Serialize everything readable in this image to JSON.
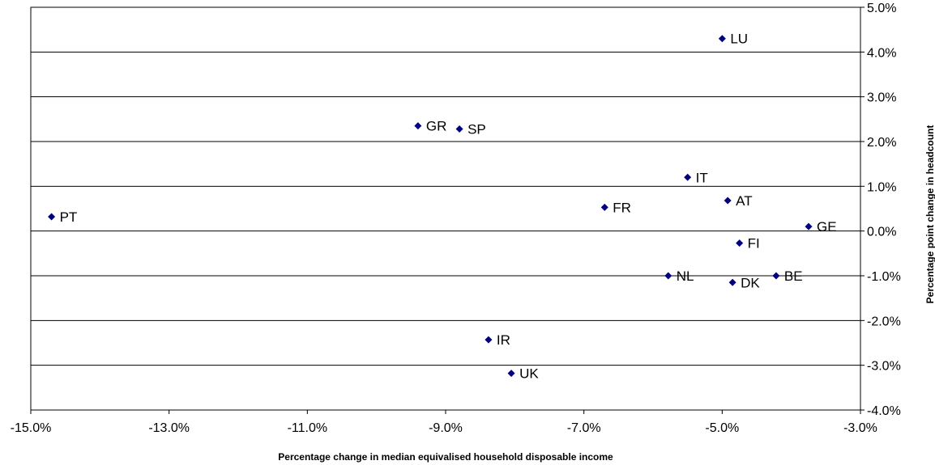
{
  "chart_data": {
    "type": "scatter",
    "title": "",
    "xlabel": "Percentage change in median equivalised household disposable income",
    "ylabel": "Percentage point change in headcount",
    "xlim": [
      -15.0,
      -3.0
    ],
    "ylim": [
      -4.0,
      5.0
    ],
    "x_ticks": [
      -15.0,
      -13.0,
      -11.0,
      -9.0,
      -7.0,
      -5.0,
      -3.0
    ],
    "x_tick_labels": [
      "-15.0%",
      "-13.0%",
      "-11.0%",
      "-9.0%",
      "-7.0%",
      "-5.0%",
      "-3.0%"
    ],
    "y_ticks": [
      5.0,
      4.0,
      3.0,
      2.0,
      1.0,
      0.0,
      -1.0,
      -2.0,
      -3.0,
      -4.0
    ],
    "y_tick_labels": [
      "5.0%",
      "4.0%",
      "3.0%",
      "2.0%",
      "1.0%",
      "0.0%",
      "-1.0%",
      "-2.0%",
      "-3.0%",
      "-4.0%"
    ],
    "y_axis_side": "right",
    "grid": "horizontal",
    "legend": "none",
    "marker": "diamond",
    "marker_color": "#000080",
    "points": [
      {
        "label": "LU",
        "x": -5.0,
        "y": 4.3
      },
      {
        "label": "GR",
        "x": -9.4,
        "y": 2.35
      },
      {
        "label": "SP",
        "x": -8.8,
        "y": 2.28
      },
      {
        "label": "IT",
        "x": -5.5,
        "y": 1.2
      },
      {
        "label": "AT",
        "x": -4.92,
        "y": 0.68
      },
      {
        "label": "FR",
        "x": -6.7,
        "y": 0.53
      },
      {
        "label": "PT",
        "x": -14.7,
        "y": 0.32
      },
      {
        "label": "GE",
        "x": -3.75,
        "y": 0.1
      },
      {
        "label": "FI",
        "x": -4.75,
        "y": -0.27
      },
      {
        "label": "NL",
        "x": -5.78,
        "y": -1.0
      },
      {
        "label": "BE",
        "x": -4.22,
        "y": -1.0
      },
      {
        "label": "DK",
        "x": -4.85,
        "y": -1.15
      },
      {
        "label": "IR",
        "x": -8.38,
        "y": -2.43
      },
      {
        "label": "UK",
        "x": -8.05,
        "y": -3.18
      }
    ]
  }
}
